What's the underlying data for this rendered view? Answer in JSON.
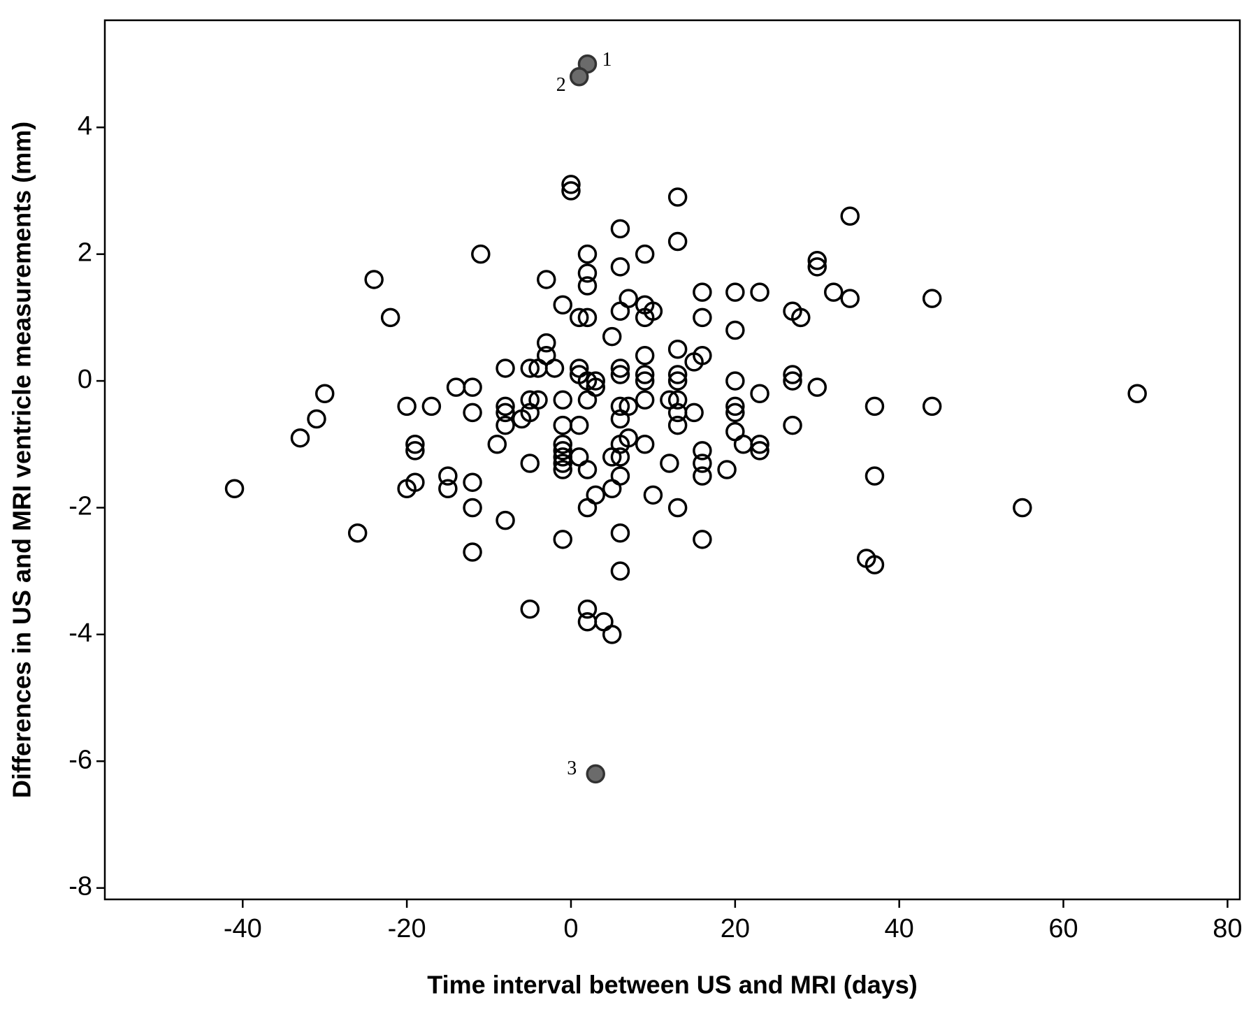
{
  "chart_data": {
    "type": "scatter",
    "x_label": "Time interval between US and MRI (days)",
    "y_label": "Differences in US and MRI ventricle measurements (mm)",
    "xlim": [
      -56.8,
      81.5
    ],
    "ylim": [
      -8.18,
      5.69
    ],
    "xticks": [
      -40,
      -20,
      0,
      20,
      40,
      60,
      80
    ],
    "yticks": [
      -8,
      -6,
      -4,
      -2,
      0,
      2,
      4
    ],
    "series": [
      {
        "color": "#000000",
        "filled": false,
        "x": [
          0,
          0,
          13,
          34,
          6,
          13,
          -11,
          2,
          9,
          30,
          30,
          6,
          2,
          -24,
          -3,
          2,
          16,
          20,
          23,
          32,
          7,
          34,
          44,
          -1,
          9,
          6,
          10,
          27,
          -22,
          1,
          2,
          9,
          16,
          28,
          20,
          5,
          -3,
          13,
          -3,
          9,
          16,
          15,
          -5,
          -4,
          -8,
          -2,
          1,
          6,
          1,
          6,
          9,
          13,
          27,
          2,
          3,
          9,
          13,
          20,
          27,
          3,
          -14,
          -12,
          30,
          -30,
          23,
          69,
          2,
          -1,
          -5,
          -4,
          9,
          12,
          13,
          -20,
          -17,
          -8,
          6,
          7,
          20,
          37,
          44,
          -8,
          -5,
          -12,
          13,
          15,
          20,
          -31,
          -6,
          6,
          -8,
          -1,
          1,
          13,
          27,
          20,
          -33,
          7,
          -9,
          -19,
          -1,
          6,
          9,
          21,
          23,
          -19,
          -1,
          16,
          23,
          5,
          -1,
          1,
          6,
          -5,
          -1,
          12,
          16,
          2,
          -1,
          19,
          -15,
          6,
          16,
          37,
          -19,
          -12,
          -41,
          -20,
          -15,
          5,
          3,
          10,
          -12,
          2,
          13,
          55,
          -8,
          -26,
          6,
          -1,
          16,
          -12,
          36,
          37,
          6,
          -5,
          2,
          2,
          4,
          5
        ],
        "values": [
          3.1,
          3.0,
          2.9,
          2.6,
          2.4,
          2.2,
          2.0,
          2.0,
          2.0,
          1.9,
          1.8,
          1.8,
          1.7,
          1.6,
          1.6,
          1.5,
          1.4,
          1.4,
          1.4,
          1.4,
          1.3,
          1.3,
          1.3,
          1.2,
          1.2,
          1.1,
          1.1,
          1.1,
          1.0,
          1.0,
          1.0,
          1.0,
          1.0,
          1.0,
          0.8,
          0.7,
          0.6,
          0.5,
          0.4,
          0.4,
          0.4,
          0.3,
          0.2,
          0.2,
          0.2,
          0.2,
          0.2,
          0.2,
          0.1,
          0.1,
          0.1,
          0.1,
          0.1,
          0.0,
          0.0,
          0.0,
          0.0,
          0.0,
          0.0,
          -0.1,
          -0.1,
          -0.1,
          -0.1,
          -0.2,
          -0.2,
          -0.2,
          -0.3,
          -0.3,
          -0.3,
          -0.3,
          -0.3,
          -0.3,
          -0.3,
          -0.4,
          -0.4,
          -0.4,
          -0.4,
          -0.4,
          -0.4,
          -0.4,
          -0.4,
          -0.5,
          -0.5,
          -0.5,
          -0.5,
          -0.5,
          -0.5,
          -0.6,
          -0.6,
          -0.6,
          -0.7,
          -0.7,
          -0.7,
          -0.7,
          -0.7,
          -0.8,
          -0.9,
          -0.9,
          -1.0,
          -1.0,
          -1.0,
          -1.0,
          -1.0,
          -1.0,
          -1.0,
          -1.1,
          -1.1,
          -1.1,
          -1.1,
          -1.2,
          -1.2,
          -1.2,
          -1.2,
          -1.3,
          -1.3,
          -1.3,
          -1.3,
          -1.4,
          -1.4,
          -1.4,
          -1.5,
          -1.5,
          -1.5,
          -1.5,
          -1.6,
          -1.6,
          -1.7,
          -1.7,
          -1.7,
          -1.7,
          -1.8,
          -1.8,
          -2.0,
          -2.0,
          -2.0,
          -2.0,
          -2.2,
          -2.4,
          -2.4,
          -2.5,
          -2.5,
          -2.7,
          -2.8,
          -2.9,
          -3.0,
          -3.6,
          -3.6,
          -3.8,
          -3.8,
          -4.0
        ]
      },
      {
        "color": "#6b6b6b",
        "filled": true,
        "x": [
          2,
          1,
          3
        ],
        "values": [
          5.0,
          4.8,
          -6.2
        ],
        "labels": [
          "1",
          "2",
          "3"
        ]
      }
    ]
  }
}
